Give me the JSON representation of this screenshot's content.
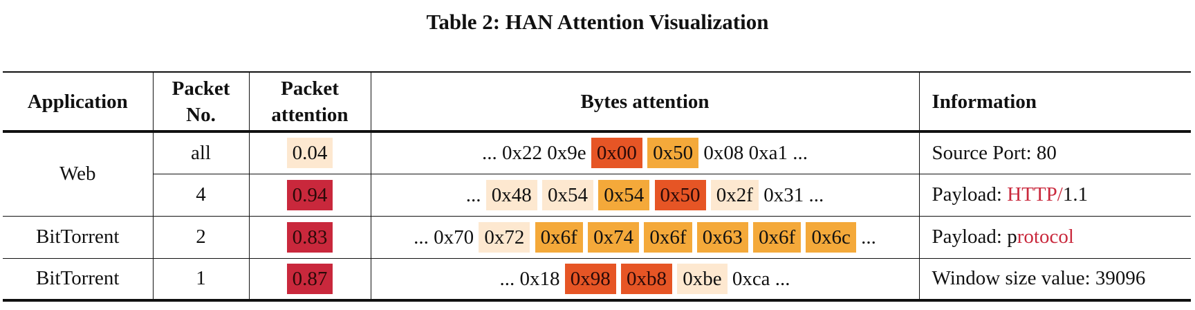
{
  "caption": "Table 2: HAN Attention Visualization",
  "colors": {
    "very_light": "#fde8d0",
    "light_orange": "#f4a93a",
    "dark_orange": "#e65525",
    "crimson": "#c9283c",
    "highlight_text": "#c9283c"
  },
  "headers": {
    "application": "Application",
    "packet_no_1": "Packet",
    "packet_no_2": "No.",
    "packet_attention_1": "Packet",
    "packet_attention_2": "attention",
    "bytes_attention": "Bytes attention",
    "information": "Information"
  },
  "rows": [
    {
      "application": "Web",
      "packet_no": "all",
      "packet_attention": "0.04",
      "packet_attention_color": "very_light",
      "bytes": [
        {
          "text": "... 0x22 0x9e",
          "color": ""
        },
        {
          "text": "0x00",
          "color": "dark_orange"
        },
        {
          "text": "0x50",
          "color": "light_orange"
        },
        {
          "text": "0x08 0xa1 ...",
          "color": ""
        }
      ],
      "info": [
        {
          "text": "Source Port: 80",
          "highlight": false
        }
      ]
    },
    {
      "application": "",
      "packet_no": "4",
      "packet_attention": "0.94",
      "packet_attention_color": "crimson",
      "bytes": [
        {
          "text": "...",
          "color": ""
        },
        {
          "text": "0x48",
          "color": "very_light"
        },
        {
          "text": "0x54",
          "color": "very_light"
        },
        {
          "text": "0x54",
          "color": "light_orange"
        },
        {
          "text": "0x50",
          "color": "dark_orange"
        },
        {
          "text": "0x2f",
          "color": "very_light"
        },
        {
          "text": "0x31 ...",
          "color": ""
        }
      ],
      "info": [
        {
          "text": "Payload: ",
          "highlight": false
        },
        {
          "text": "HTTP/",
          "highlight": true
        },
        {
          "text": "1.1",
          "highlight": false
        }
      ]
    },
    {
      "application": "BitTorrent",
      "packet_no": "2",
      "packet_attention": "0.83",
      "packet_attention_color": "crimson",
      "bytes": [
        {
          "text": "... 0x70",
          "color": ""
        },
        {
          "text": "0x72",
          "color": "very_light"
        },
        {
          "text": "0x6f",
          "color": "light_orange"
        },
        {
          "text": "0x74",
          "color": "light_orange"
        },
        {
          "text": "0x6f",
          "color": "light_orange"
        },
        {
          "text": "0x63",
          "color": "light_orange"
        },
        {
          "text": "0x6f",
          "color": "light_orange"
        },
        {
          "text": "0x6c",
          "color": "light_orange"
        },
        {
          "text": "...",
          "color": ""
        }
      ],
      "info": [
        {
          "text": "Payload: p",
          "highlight": false
        },
        {
          "text": "rotocol",
          "highlight": true
        }
      ]
    },
    {
      "application": "BitTorrent",
      "packet_no": "1",
      "packet_attention": "0.87",
      "packet_attention_color": "crimson",
      "bytes": [
        {
          "text": "... 0x18",
          "color": ""
        },
        {
          "text": "0x98",
          "color": "dark_orange"
        },
        {
          "text": "0xb8",
          "color": "dark_orange"
        },
        {
          "text": "0xbe",
          "color": "very_light"
        },
        {
          "text": "0xca ...",
          "color": ""
        }
      ],
      "info": [
        {
          "text": "Window size value: 39096",
          "highlight": false
        }
      ]
    }
  ]
}
